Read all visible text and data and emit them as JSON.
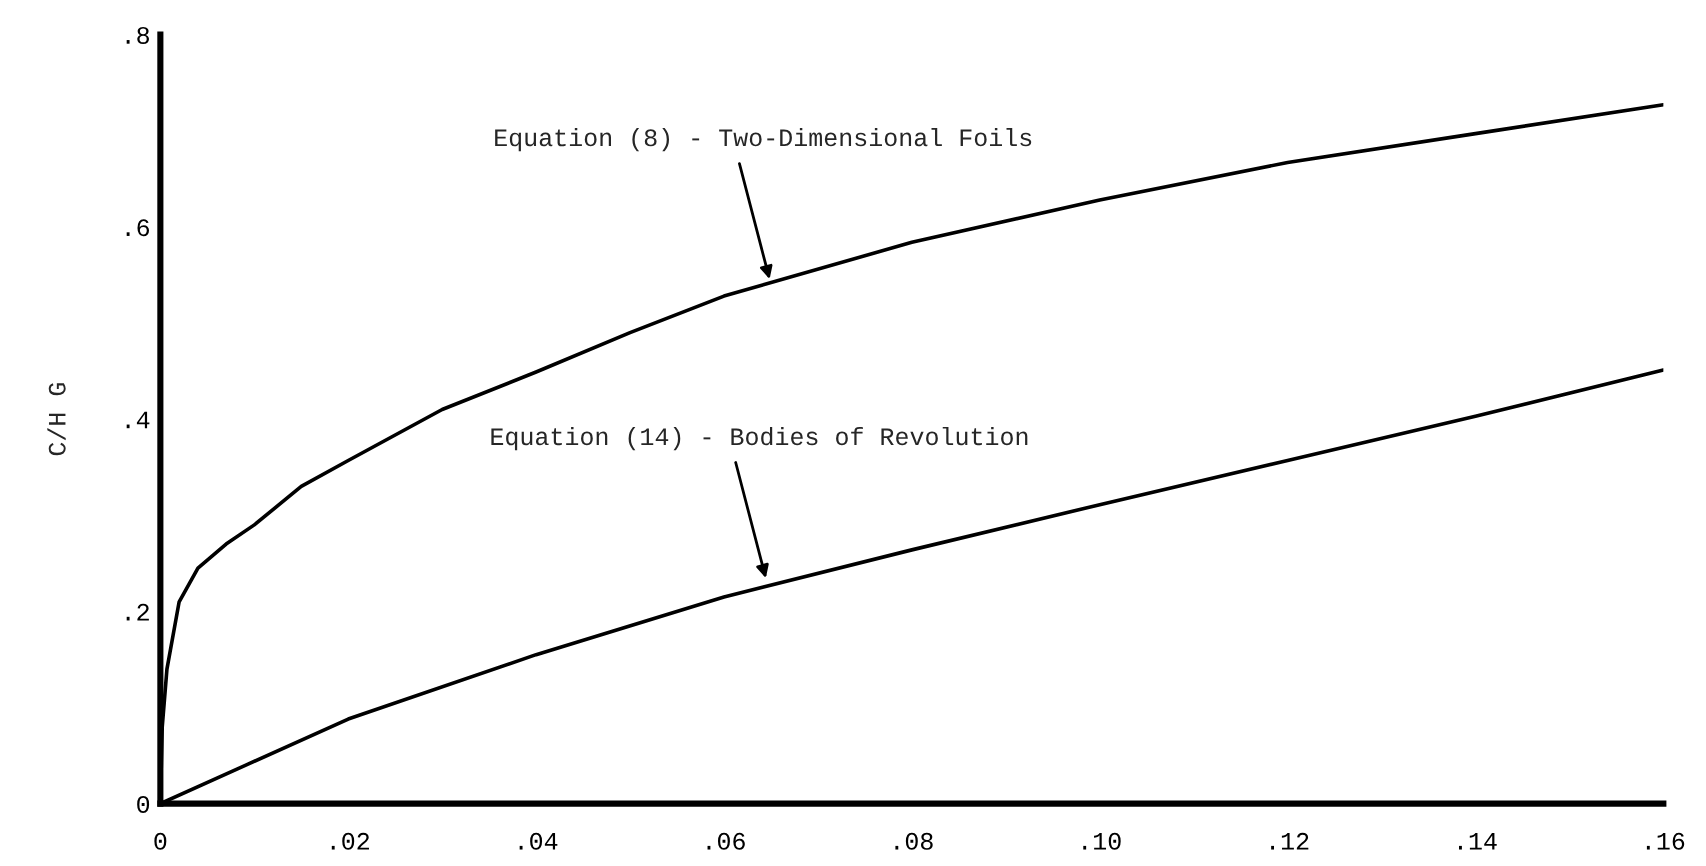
{
  "chart_data": {
    "type": "line",
    "ylabel": "C/H G",
    "xlim": [
      0,
      0.16
    ],
    "ylim": [
      0,
      0.8
    ],
    "xticks": [
      0,
      {
        "value": 0.02,
        "label": ".02"
      },
      {
        "value": 0.04,
        "label": ".04"
      },
      {
        "value": 0.06,
        "label": ".06"
      },
      {
        "value": 0.08,
        "label": ".08"
      },
      {
        "value": 0.1,
        "label": ".10"
      },
      {
        "value": 0.12,
        "label": ".12"
      },
      {
        "value": 0.14,
        "label": ".14"
      },
      {
        "value": 0.16,
        "label": ".16"
      }
    ],
    "yticks": [
      0,
      {
        "value": 0.2,
        "label": ".2"
      },
      {
        "value": 0.4,
        "label": ".4"
      },
      {
        "value": 0.6,
        "label": ".6"
      },
      {
        "value": 0.8,
        "label": ".8"
      }
    ],
    "grid": false,
    "legend": false,
    "series": [
      {
        "color": "#000000",
        "x": [
          0,
          0.0002,
          0.0007,
          0.002,
          0.004,
          0.007,
          0.01,
          0.015,
          0.02,
          0.03,
          0.04,
          0.05,
          0.06,
          0.08,
          0.1,
          0.12,
          0.14,
          0.16
        ],
        "values": [
          0,
          0.08,
          0.14,
          0.21,
          0.245,
          0.27,
          0.29,
          0.33,
          0.357,
          0.41,
          0.449,
          0.49,
          0.528,
          0.584,
          0.628,
          0.667,
          0.697,
          0.727
        ]
      },
      {
        "color": "#000000",
        "x": [
          0,
          0.02,
          0.04,
          0.06,
          0.08,
          0.1,
          0.12,
          0.14,
          0.16
        ],
        "values": [
          0,
          0.088,
          0.155,
          0.215,
          0.264,
          0.311,
          0.357,
          0.403,
          0.451
        ]
      }
    ],
    "annotations": [
      {
        "text": "Equation (8) - Two-Dimensional Foils",
        "x": 0.065,
        "y": 0.54
      },
      {
        "text": "Equation (14) - Bodies of Revolution",
        "x": 0.0646,
        "y": 0.229
      }
    ]
  }
}
